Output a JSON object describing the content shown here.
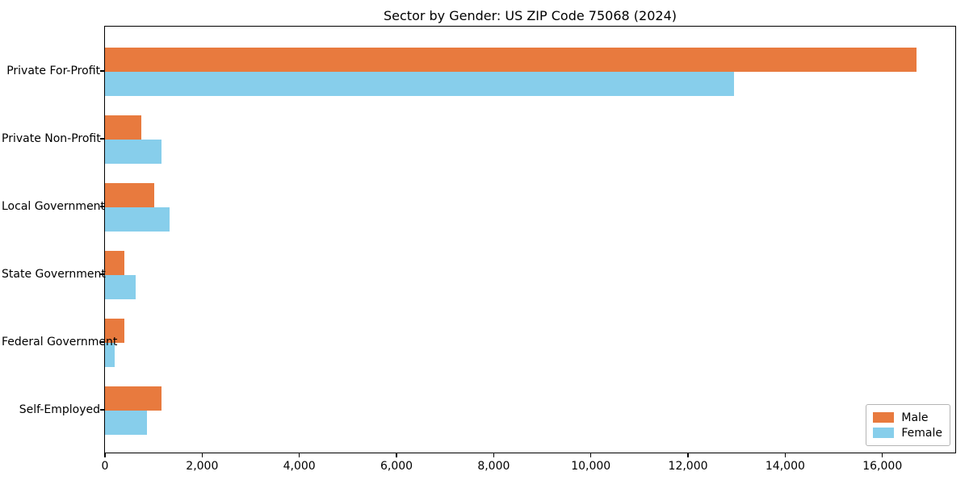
{
  "title": "Sector by Gender: US ZIP Code 75068 (2024)",
  "chart_data": {
    "type": "bar",
    "orientation": "horizontal",
    "title": "Sector by Gender: US ZIP Code 75068 (2024)",
    "categories": [
      "Private For-Profit",
      "Private Non-Profit",
      "Local Government",
      "State Government",
      "Federal Government",
      "Self-Employed"
    ],
    "series": [
      {
        "name": "Male",
        "color": "#e87a3e",
        "values": [
          16710,
          750,
          1020,
          410,
          410,
          1170
        ]
      },
      {
        "name": "Female",
        "color": "#87ceeb",
        "values": [
          12960,
          1170,
          1330,
          640,
          210,
          880
        ]
      }
    ],
    "xlabel": "",
    "ylabel": "",
    "xlim": [
      0,
      17500
    ],
    "x_tick_values": [
      0,
      2000,
      4000,
      6000,
      8000,
      10000,
      12000,
      14000,
      16000
    ],
    "x_tick_labels": [
      "0",
      "2,000",
      "4,000",
      "6,000",
      "8,000",
      "10,000",
      "12,000",
      "14,000",
      "16,000"
    ],
    "grid": false,
    "legend": {
      "position": "lower right"
    }
  },
  "legend": {
    "male_label": "Male",
    "female_label": "Female"
  }
}
